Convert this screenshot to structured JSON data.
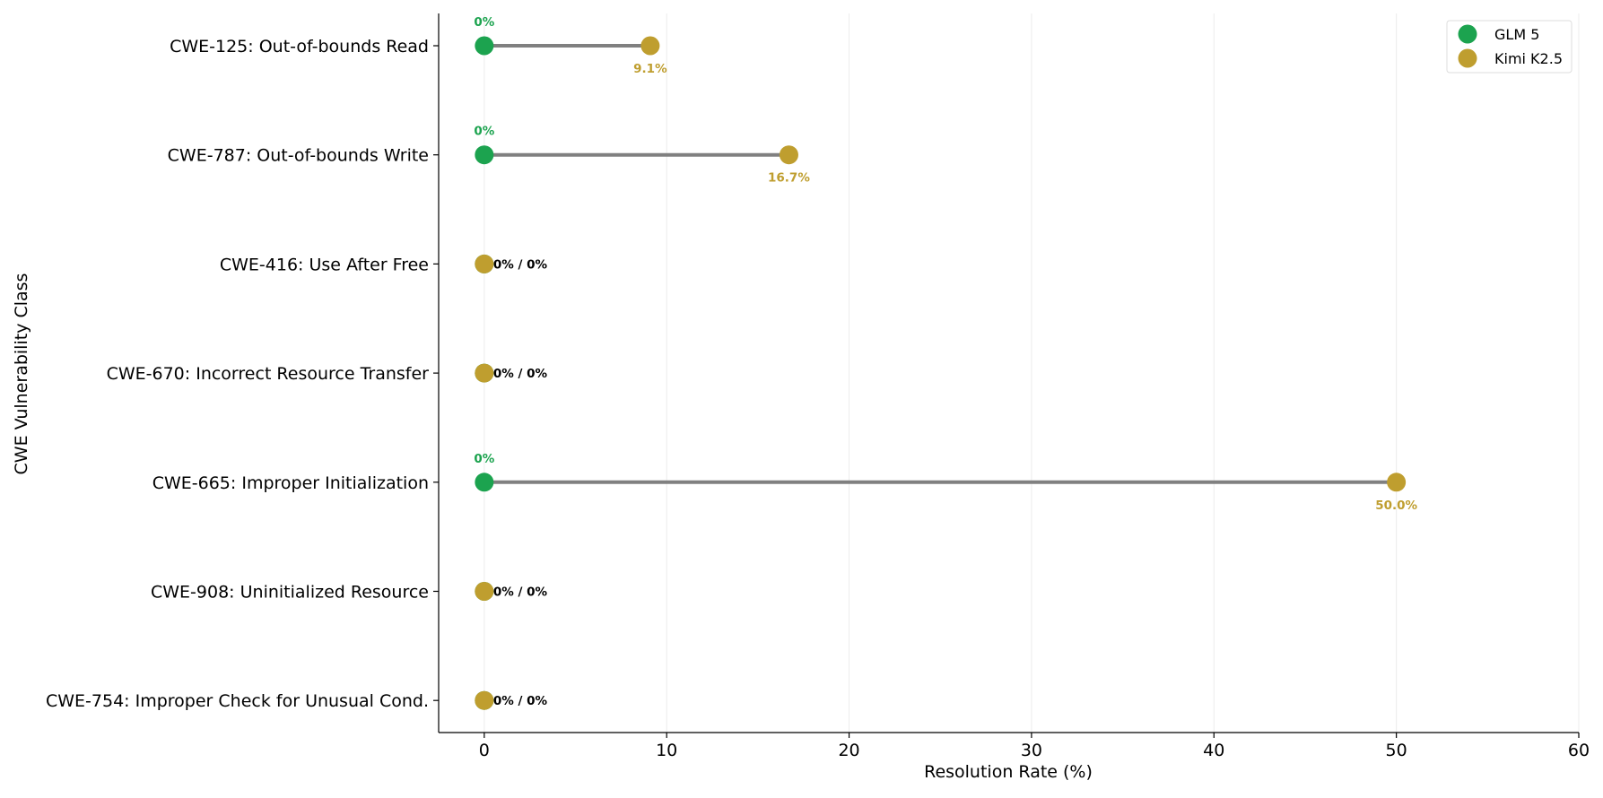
{
  "chart_data": {
    "type": "dumbbell",
    "xlabel": "Resolution Rate (%)",
    "ylabel": "CWE Vulnerability Class",
    "xlim": [
      -2.5,
      60
    ],
    "xticks": [
      0,
      10,
      20,
      30,
      40,
      50,
      60
    ],
    "grid": "x",
    "legend_position": "top-right",
    "series": [
      {
        "name": "GLM 5",
        "color": "#1ca34f"
      },
      {
        "name": "Kimi K2.5",
        "color": "#bf9e2f"
      }
    ],
    "connector_color": "#808080",
    "rows": [
      {
        "category": "CWE-125: Out-of-bounds Read",
        "glm": 0,
        "kimi": 9.1,
        "glm_label": "0%",
        "kimi_label": "9.1%"
      },
      {
        "category": "CWE-787: Out-of-bounds Write",
        "glm": 0,
        "kimi": 16.7,
        "glm_label": "0%",
        "kimi_label": "16.7%"
      },
      {
        "category": "CWE-416: Use After Free",
        "glm": 0,
        "kimi": 0,
        "combined_label": "0% / 0%"
      },
      {
        "category": "CWE-670: Incorrect Resource Transfer",
        "glm": 0,
        "kimi": 0,
        "combined_label": "0% / 0%"
      },
      {
        "category": "CWE-665: Improper Initialization",
        "glm": 0,
        "kimi": 50.0,
        "glm_label": "0%",
        "kimi_label": "50.0%"
      },
      {
        "category": "CWE-908: Uninitialized Resource",
        "glm": 0,
        "kimi": 0,
        "combined_label": "0% / 0%"
      },
      {
        "category": "CWE-754: Improper Check for Unusual Cond.",
        "glm": 0,
        "kimi": 0,
        "combined_label": "0% / 0%"
      }
    ]
  }
}
